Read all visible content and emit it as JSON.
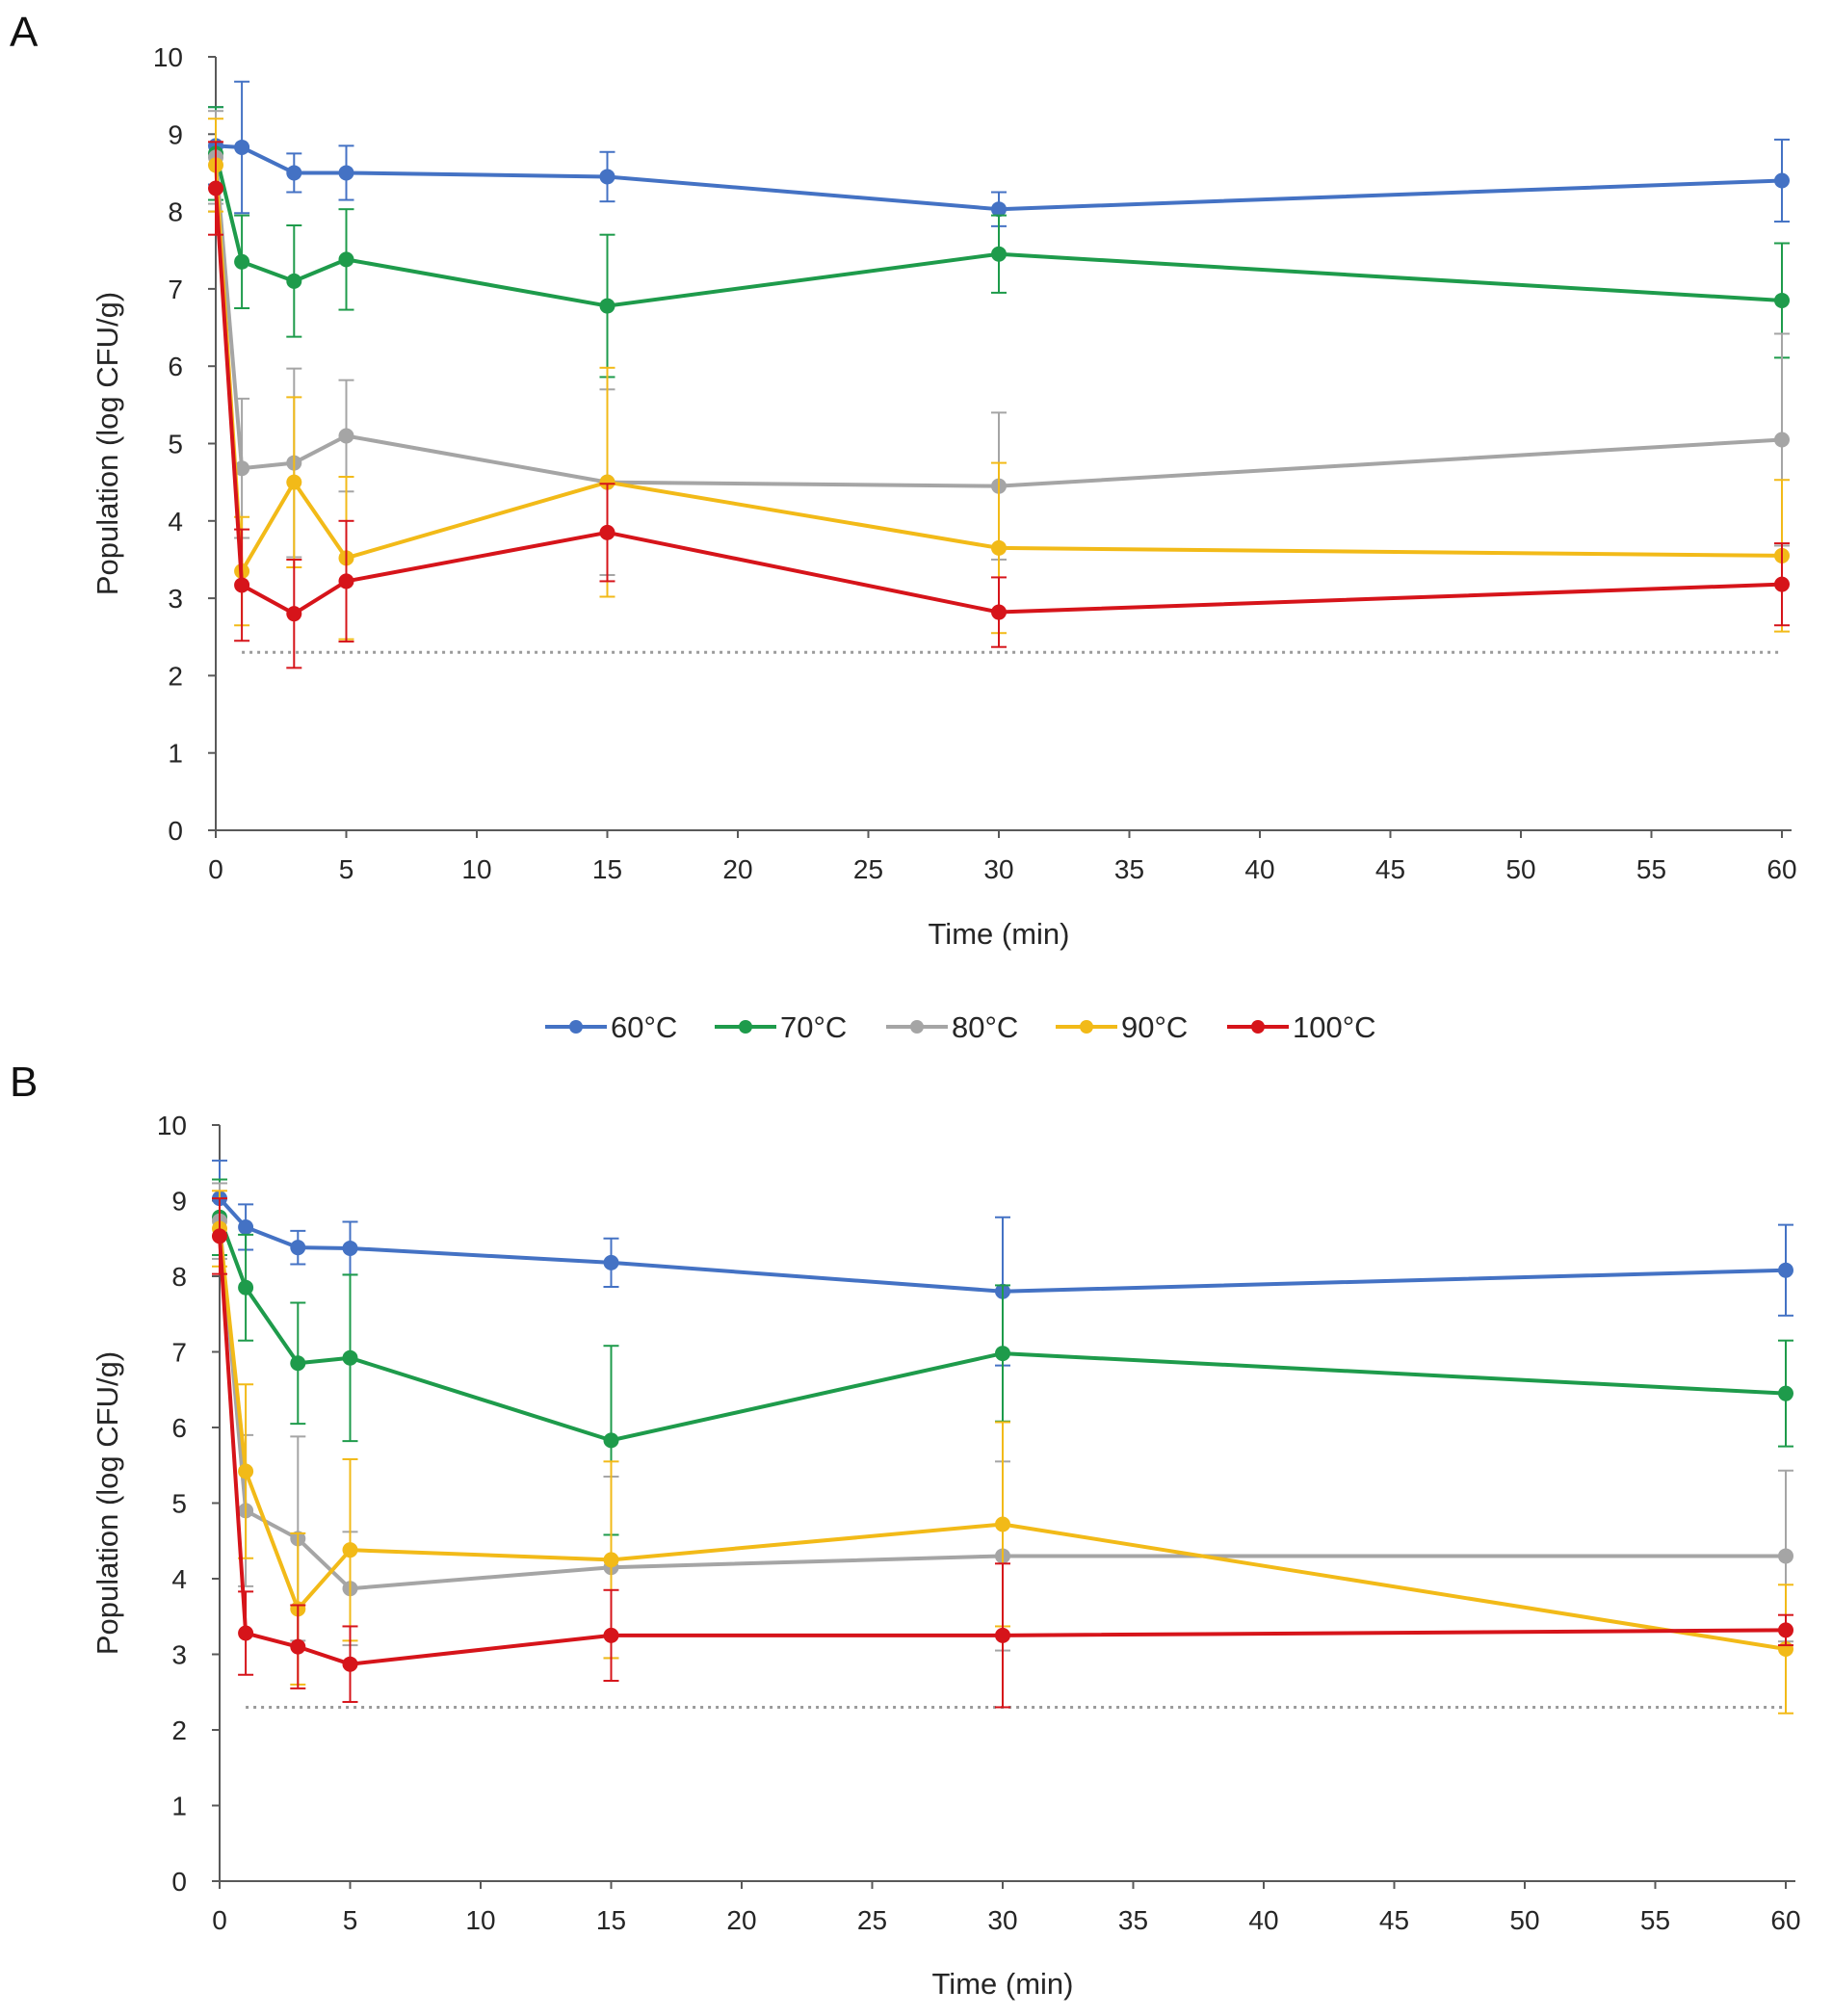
{
  "legend": {
    "entries": [
      "60°C",
      "70°C",
      "80°C",
      "90°C",
      "100°C"
    ],
    "colors": [
      "#4472C4",
      "#1E9B4B",
      "#A5A5A5",
      "#F2BA18",
      "#D6141A"
    ]
  },
  "chart_data": [
    {
      "panel_label": "A",
      "type": "line",
      "xlabel": "Time (min)",
      "ylabel": "Population (log CFU/g)",
      "xlim": [
        0,
        60
      ],
      "ylim": [
        0,
        10
      ],
      "xticks": [
        "0",
        "5",
        "10",
        "15",
        "20",
        "25",
        "30",
        "35",
        "40",
        "45",
        "50",
        "55",
        "60"
      ],
      "yticks": [
        "0",
        "1",
        "2",
        "3",
        "4",
        "5",
        "6",
        "7",
        "8",
        "9",
        "10"
      ],
      "detection_limit": 2.3,
      "x": [
        0,
        1,
        3,
        5,
        15,
        30,
        60
      ],
      "series": [
        {
          "name": "60°C",
          "color": "#4472C4",
          "values": [
            8.85,
            8.83,
            8.5,
            8.5,
            8.45,
            8.03,
            8.4
          ],
          "errors": [
            0.5,
            0.85,
            0.25,
            0.35,
            0.32,
            0.22,
            0.53
          ]
        },
        {
          "name": "70°C",
          "color": "#1E9B4B",
          "values": [
            8.75,
            7.35,
            7.1,
            7.38,
            6.78,
            7.45,
            6.85
          ],
          "errors": [
            0.6,
            0.6,
            0.72,
            0.65,
            0.92,
            0.5,
            0.74
          ]
        },
        {
          "name": "80°C",
          "color": "#A5A5A5",
          "values": [
            8.7,
            4.68,
            4.75,
            5.1,
            4.5,
            4.45,
            5.05
          ],
          "errors": [
            0.6,
            0.9,
            1.22,
            0.72,
            1.2,
            0.95,
            1.37
          ]
        },
        {
          "name": "90°C",
          "color": "#F2BA18",
          "values": [
            8.6,
            3.35,
            4.5,
            3.52,
            4.5,
            3.65,
            3.55
          ],
          "errors": [
            0.6,
            0.7,
            1.1,
            1.05,
            1.48,
            1.1,
            0.98
          ]
        },
        {
          "name": "100°C",
          "color": "#D6141A",
          "values": [
            8.3,
            3.17,
            2.8,
            3.22,
            3.85,
            2.82,
            3.18
          ],
          "errors": [
            0.6,
            0.72,
            0.7,
            0.78,
            0.63,
            0.45,
            0.53
          ]
        }
      ]
    },
    {
      "panel_label": "B",
      "type": "line",
      "xlabel": "Time (min)",
      "ylabel": "Population (log CFU/g)",
      "xlim": [
        0,
        60
      ],
      "ylim": [
        0,
        10
      ],
      "xticks": [
        "0",
        "5",
        "10",
        "15",
        "20",
        "25",
        "30",
        "35",
        "40",
        "45",
        "50",
        "55",
        "60"
      ],
      "yticks": [
        "0",
        "1",
        "2",
        "3",
        "4",
        "5",
        "6",
        "7",
        "8",
        "9",
        "10"
      ],
      "detection_limit": 2.3,
      "x": [
        0,
        1,
        3,
        5,
        15,
        30,
        60
      ],
      "series": [
        {
          "name": "60°C",
          "color": "#4472C4",
          "values": [
            9.03,
            8.65,
            8.38,
            8.37,
            8.18,
            7.8,
            8.08
          ],
          "errors": [
            0.5,
            0.3,
            0.22,
            0.35,
            0.32,
            0.98,
            0.6
          ]
        },
        {
          "name": "70°C",
          "color": "#1E9B4B",
          "values": [
            8.78,
            7.85,
            6.85,
            6.92,
            5.83,
            6.98,
            6.45
          ],
          "errors": [
            0.5,
            0.7,
            0.8,
            1.1,
            1.25,
            0.9,
            0.7
          ]
        },
        {
          "name": "80°C",
          "color": "#A5A5A5",
          "values": [
            8.73,
            4.9,
            4.53,
            3.87,
            4.15,
            4.3,
            4.3
          ],
          "errors": [
            0.5,
            1.0,
            1.35,
            0.75,
            1.2,
            1.25,
            1.13
          ]
        },
        {
          "name": "90°C",
          "color": "#F2BA18",
          "values": [
            8.63,
            5.42,
            3.6,
            4.38,
            4.25,
            4.72,
            3.07
          ],
          "errors": [
            0.5,
            1.15,
            1.0,
            1.2,
            1.3,
            1.35,
            0.85
          ]
        },
        {
          "name": "100°C",
          "color": "#D6141A",
          "values": [
            8.53,
            3.28,
            3.1,
            2.87,
            3.25,
            3.25,
            3.32
          ],
          "errors": [
            0.5,
            0.55,
            0.55,
            0.5,
            0.6,
            0.95,
            0.2
          ]
        }
      ]
    }
  ]
}
